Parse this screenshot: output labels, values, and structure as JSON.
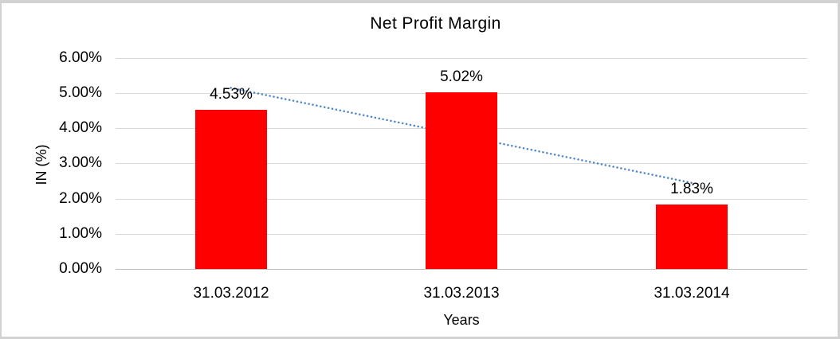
{
  "chart_data": {
    "type": "bar",
    "title": "Net Profit Margin",
    "xlabel": "Years",
    "ylabel": "IN (%)",
    "categories": [
      "31.03.2012",
      "31.03.2013",
      "31.03.2014"
    ],
    "values": [
      4.53,
      5.02,
      1.83
    ],
    "value_labels": [
      "4.53%",
      "5.02%",
      "1.83%"
    ],
    "ylim": [
      0,
      6
    ],
    "ytick_values": [
      0,
      1,
      2,
      3,
      4,
      5,
      6
    ],
    "ytick_labels": [
      "0.00%",
      "1.00%",
      "2.00%",
      "3.00%",
      "4.00%",
      "5.00%",
      "6.00%"
    ],
    "grid": true,
    "legend": "none",
    "bar_color": "#ff0000",
    "trendline": {
      "type": "linear",
      "style": "dotted",
      "color": "#4f86c6"
    }
  }
}
